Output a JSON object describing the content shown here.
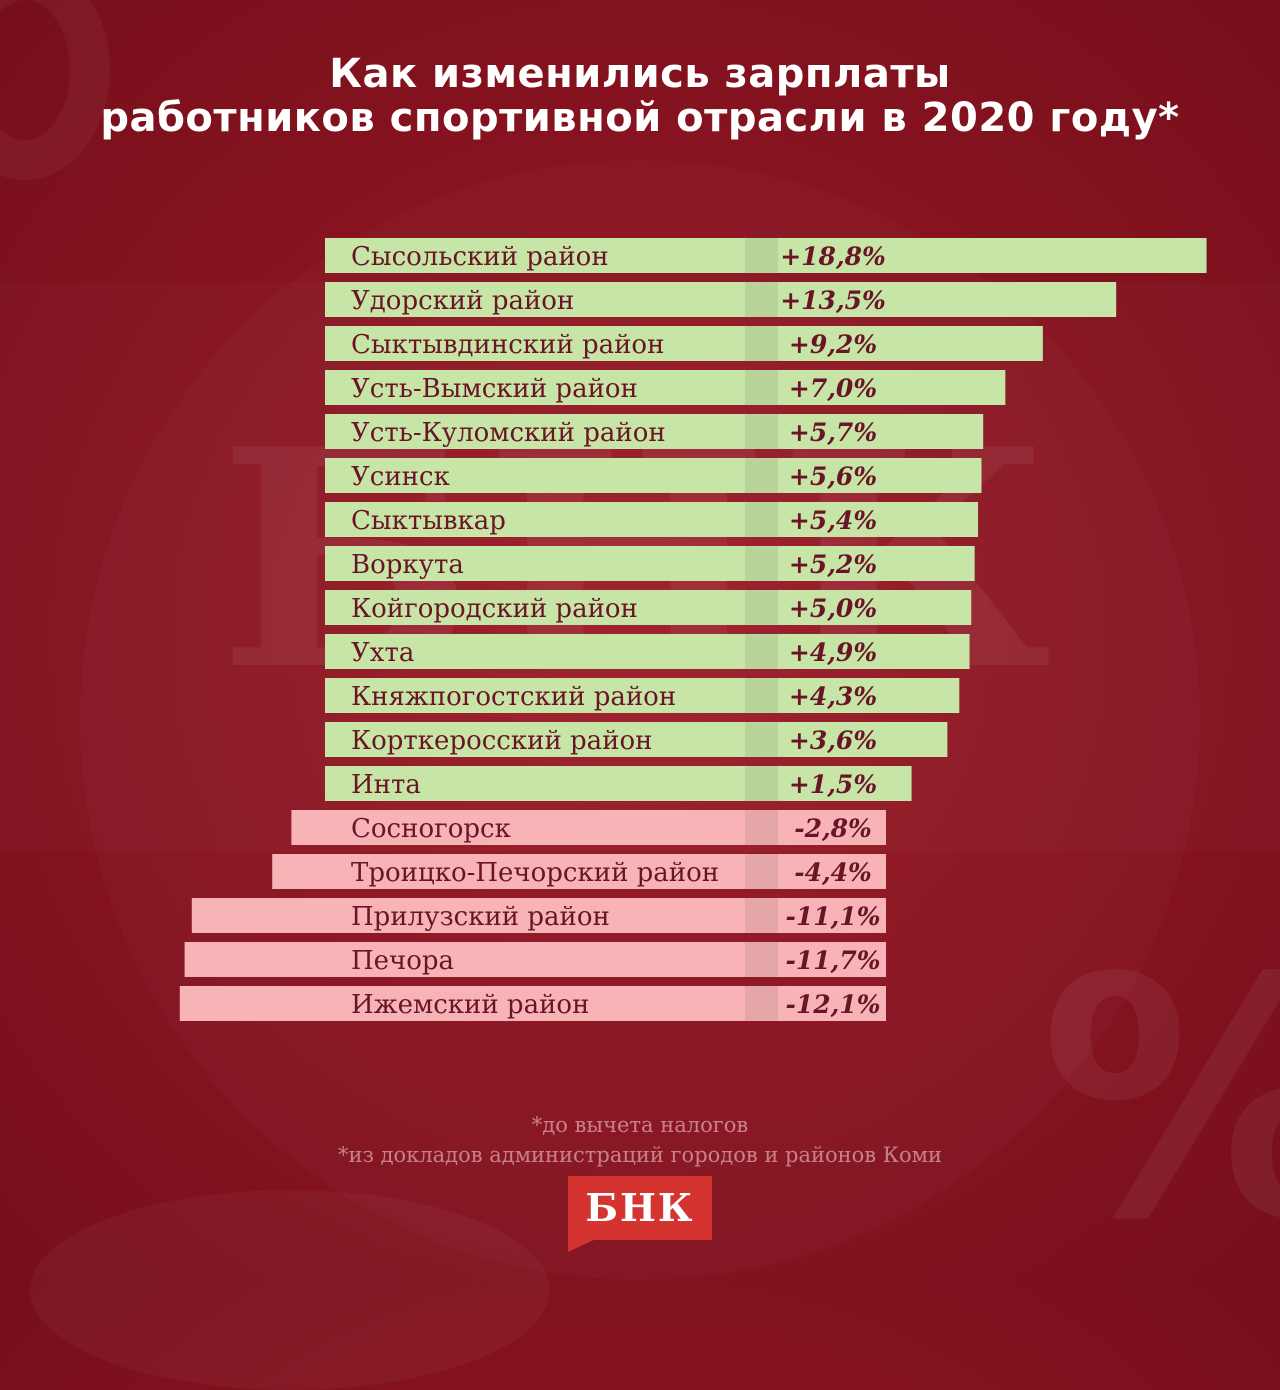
{
  "title_lines": [
    "Как изменились зарплаты",
    "работников спортивной отрасли в 2020 году*"
  ],
  "footnotes": [
    "*до вычета налогов",
    "*из докладов администраций городов и районов Коми"
  ],
  "logo_text": "БНК",
  "watermark_text": "БНК",
  "colors": {
    "positive_bar": "#c7e5a6",
    "negative_bar": "#f7b3b5",
    "label_text": "#6a1527",
    "background": "#8a1420",
    "logo": "#d5332f"
  },
  "chart_data": {
    "type": "bar",
    "orientation": "horizontal",
    "title": "Как изменились зарплаты работников спортивной отрасли в 2020 году*",
    "unit": "%",
    "categories": [
      "Сысольский район",
      "Удорский район",
      "Сыктывдинский район",
      "Усть-Вымский район",
      "Усть-Куломский район",
      "Усинск",
      "Сыктывкар",
      "Воркута",
      "Койгородский район",
      "Ухта",
      "Княжпогостский район",
      "Корткеросский район",
      "Инта",
      "Сосногорск",
      "Троицко-Печорский район",
      "Прилузский район",
      "Печора",
      "Ижемский район"
    ],
    "values": [
      18.8,
      13.5,
      9.2,
      7.0,
      5.7,
      5.6,
      5.4,
      5.2,
      5.0,
      4.9,
      4.3,
      3.6,
      1.5,
      -2.8,
      -4.4,
      -11.1,
      -11.7,
      -12.1
    ],
    "value_labels": [
      "+18,8%",
      "+13,5%",
      "+9,2%",
      "+7,0%",
      "+5,7%",
      "+5,6%",
      "+5,4%",
      "+5,2%",
      "+5,0%",
      "+4,9%",
      "+4,3%",
      "+3,6%",
      "+1,5%",
      "-2,8%",
      "-4,4%",
      "-11,1%",
      "-11,7%",
      "-12,1%"
    ]
  }
}
